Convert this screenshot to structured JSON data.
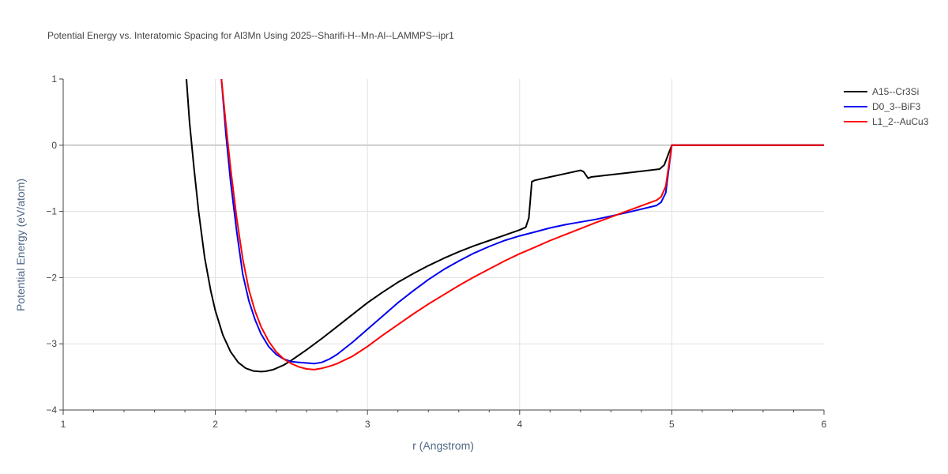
{
  "chart_data": {
    "type": "line",
    "title": "Potential Energy vs. Interatomic Spacing for Al3Mn Using 2025--Sharifi-H--Mn-Al--LAMMPS--ipr1",
    "xlabel": "r (Angstrom)",
    "ylabel": "Potential Energy (eV/atom)",
    "xlim": [
      1,
      6
    ],
    "ylim": [
      -4,
      1
    ],
    "xticks": [
      "1",
      "2",
      "3",
      "4",
      "5",
      "6"
    ],
    "yticks": [
      "1",
      "0",
      "−1",
      "−2",
      "−3",
      "−4"
    ],
    "grid": true,
    "legend_position": "top-right",
    "series": [
      {
        "name": "A15--Cr3Si",
        "color": "#000000",
        "x": [
          1.81,
          1.83,
          1.86,
          1.89,
          1.93,
          1.97,
          2.0,
          2.05,
          2.1,
          2.15,
          2.2,
          2.25,
          2.3,
          2.33,
          2.38,
          2.45,
          2.5,
          2.6,
          2.7,
          2.8,
          2.9,
          3.0,
          3.1,
          3.2,
          3.3,
          3.4,
          3.5,
          3.6,
          3.7,
          3.8,
          3.9,
          4.0,
          4.04,
          4.06,
          4.08,
          4.1,
          4.2,
          4.3,
          4.4,
          4.42,
          4.45,
          4.47,
          4.55,
          4.7,
          4.85,
          4.92,
          4.95,
          4.98,
          5.0,
          5.5,
          6.0
        ],
        "values": [
          1.0,
          0.35,
          -0.35,
          -1.0,
          -1.7,
          -2.2,
          -2.5,
          -2.87,
          -3.12,
          -3.28,
          -3.37,
          -3.41,
          -3.42,
          -3.415,
          -3.39,
          -3.32,
          -3.25,
          -3.09,
          -2.92,
          -2.74,
          -2.56,
          -2.38,
          -2.22,
          -2.07,
          -1.94,
          -1.82,
          -1.71,
          -1.61,
          -1.52,
          -1.44,
          -1.36,
          -1.28,
          -1.24,
          -1.1,
          -0.55,
          -0.53,
          -0.48,
          -0.43,
          -0.38,
          -0.4,
          -0.5,
          -0.48,
          -0.46,
          -0.42,
          -0.38,
          -0.36,
          -0.3,
          -0.12,
          0.0,
          0.0,
          0.0
        ]
      },
      {
        "name": "D0_3--BiF3",
        "color": "#0000ee",
        "x": [
          2.04,
          2.07,
          2.1,
          2.14,
          2.18,
          2.22,
          2.26,
          2.3,
          2.35,
          2.4,
          2.45,
          2.5,
          2.55,
          2.6,
          2.65,
          2.7,
          2.75,
          2.8,
          2.9,
          3.0,
          3.1,
          3.2,
          3.3,
          3.4,
          3.5,
          3.6,
          3.7,
          3.8,
          3.9,
          4.0,
          4.1,
          4.2,
          4.3,
          4.35,
          4.5,
          4.7,
          4.9,
          4.93,
          4.96,
          5.0,
          5.5,
          6.0
        ],
        "values": [
          1.0,
          0.15,
          -0.55,
          -1.3,
          -1.95,
          -2.35,
          -2.63,
          -2.85,
          -3.04,
          -3.16,
          -3.23,
          -3.27,
          -3.28,
          -3.29,
          -3.3,
          -3.28,
          -3.23,
          -3.16,
          -2.98,
          -2.78,
          -2.58,
          -2.38,
          -2.2,
          -2.03,
          -1.88,
          -1.75,
          -1.63,
          -1.53,
          -1.44,
          -1.37,
          -1.31,
          -1.25,
          -1.2,
          -1.18,
          -1.12,
          -1.02,
          -0.91,
          -0.86,
          -0.72,
          0.0,
          0.0,
          0.0
        ]
      },
      {
        "name": "L1_2--AuCu3",
        "color": "#ff0000",
        "x": [
          2.04,
          2.07,
          2.1,
          2.14,
          2.18,
          2.22,
          2.26,
          2.3,
          2.35,
          2.4,
          2.45,
          2.5,
          2.55,
          2.6,
          2.65,
          2.7,
          2.75,
          2.8,
          2.9,
          3.0,
          3.1,
          3.2,
          3.3,
          3.4,
          3.5,
          3.6,
          3.7,
          3.8,
          3.9,
          4.0,
          4.1,
          4.2,
          4.3,
          4.4,
          4.5,
          4.7,
          4.9,
          4.93,
          4.96,
          5.0,
          5.5,
          6.0
        ],
        "values": [
          1.0,
          0.3,
          -0.35,
          -1.1,
          -1.72,
          -2.18,
          -2.5,
          -2.74,
          -2.96,
          -3.12,
          -3.23,
          -3.3,
          -3.35,
          -3.38,
          -3.39,
          -3.37,
          -3.34,
          -3.3,
          -3.19,
          -3.04,
          -2.87,
          -2.71,
          -2.55,
          -2.4,
          -2.26,
          -2.12,
          -1.99,
          -1.87,
          -1.75,
          -1.64,
          -1.54,
          -1.44,
          -1.35,
          -1.26,
          -1.17,
          -1.0,
          -0.83,
          -0.78,
          -0.62,
          0.0,
          0.0,
          0.0
        ]
      }
    ]
  }
}
